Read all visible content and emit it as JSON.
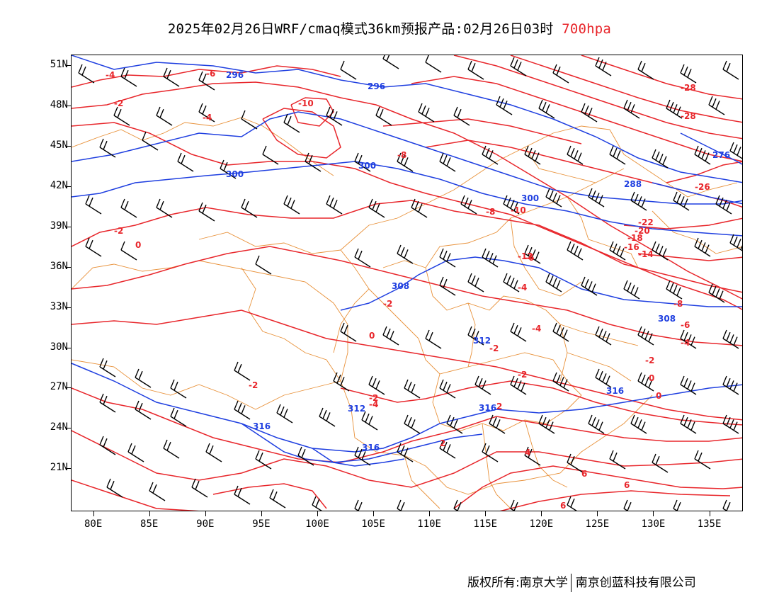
{
  "title": {
    "main": "2025年02月26日WRF/cmaq模式36km预报产品:02月26日03时",
    "level": "700hpa",
    "level_color": "#e8262b"
  },
  "axes": {
    "lat_labels": [
      "51N",
      "48N",
      "45N",
      "42N",
      "39N",
      "36N",
      "33N",
      "30N",
      "27N",
      "24N",
      "21N"
    ],
    "lat_values": [
      51,
      48,
      45,
      42,
      39,
      36,
      33,
      30,
      27,
      24,
      21
    ],
    "lon_labels": [
      "80E",
      "85E",
      "90E",
      "95E",
      "100E",
      "105E",
      "110E",
      "115E",
      "120E",
      "125E",
      "130E",
      "135E"
    ],
    "lon_values": [
      80,
      85,
      90,
      95,
      100,
      105,
      110,
      115,
      120,
      125,
      130,
      135
    ],
    "lon_range": [
      78,
      138
    ],
    "lat_range": [
      17.8,
      51.8
    ]
  },
  "colors": {
    "temperature": "#e8262b",
    "geopotential": "#1f3fe0",
    "boundary": "#e8913a",
    "wind": "#000000"
  },
  "temperature_labels": [
    "-4",
    "-6",
    "-2",
    "-4",
    "-10",
    "-8",
    "-2",
    "0",
    "-2",
    "-2",
    "0",
    "-2",
    "-2",
    "-4",
    "-4",
    "-4",
    "-6",
    "-8",
    "-10",
    "-12",
    "-14",
    "-16",
    "-18",
    "-20",
    "-22",
    "-26",
    "-28",
    "-28",
    "-8",
    "-6",
    "-4",
    "-2",
    "0",
    "-2",
    "0",
    "2",
    "2",
    "4",
    "6",
    "6",
    "6"
  ],
  "geopotential_labels": [
    "296",
    "296",
    "300",
    "300",
    "300",
    "308",
    "308",
    "312",
    "312",
    "316",
    "316",
    "316",
    "316",
    "276",
    "288"
  ],
  "footer": {
    "left": "版权所有:南京大学",
    "right": "南京创蓝科技有限公司"
  }
}
